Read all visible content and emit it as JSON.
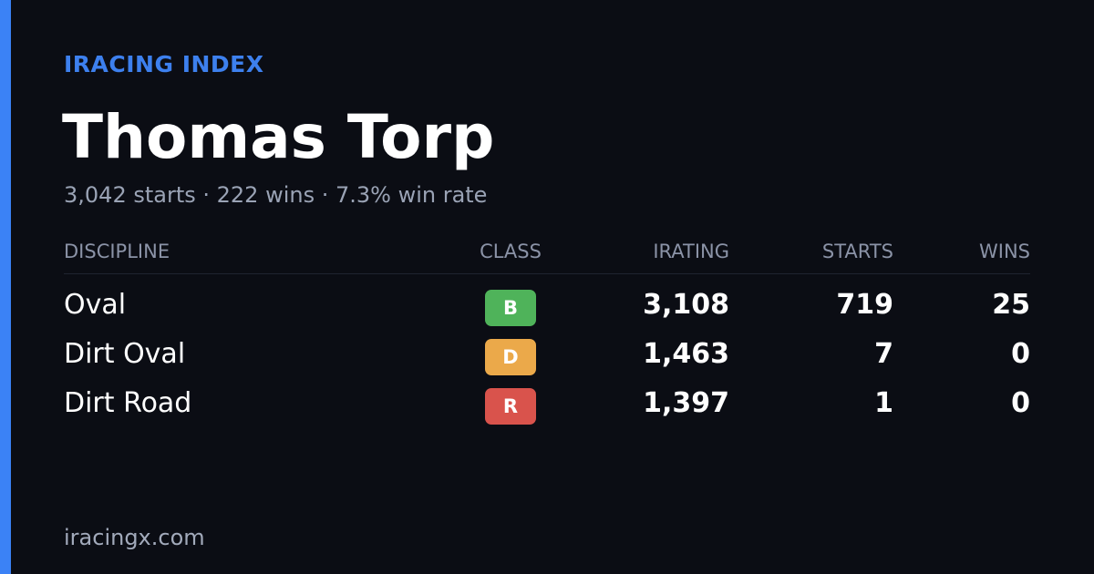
{
  "header": {
    "brand": "IRACING INDEX",
    "name": "Thomas Torp",
    "summary": "3,042 starts · 222 wins · 7.3% win rate"
  },
  "table": {
    "columns": [
      "DISCIPLINE",
      "CLASS",
      "IRATING",
      "STARTS",
      "WINS"
    ],
    "rows": [
      {
        "discipline": "Oval",
        "class": "B",
        "class_color": "#4fb35a",
        "irating": "3,108",
        "starts": "719",
        "wins": "25"
      },
      {
        "discipline": "Dirt Oval",
        "class": "D",
        "class_color": "#eba94a",
        "irating": "1,463",
        "starts": "7",
        "wins": "0"
      },
      {
        "discipline": "Dirt Road",
        "class": "R",
        "class_color": "#d9534c",
        "irating": "1,397",
        "starts": "1",
        "wins": "0"
      }
    ]
  },
  "footer": {
    "site": "iracingx.com"
  }
}
